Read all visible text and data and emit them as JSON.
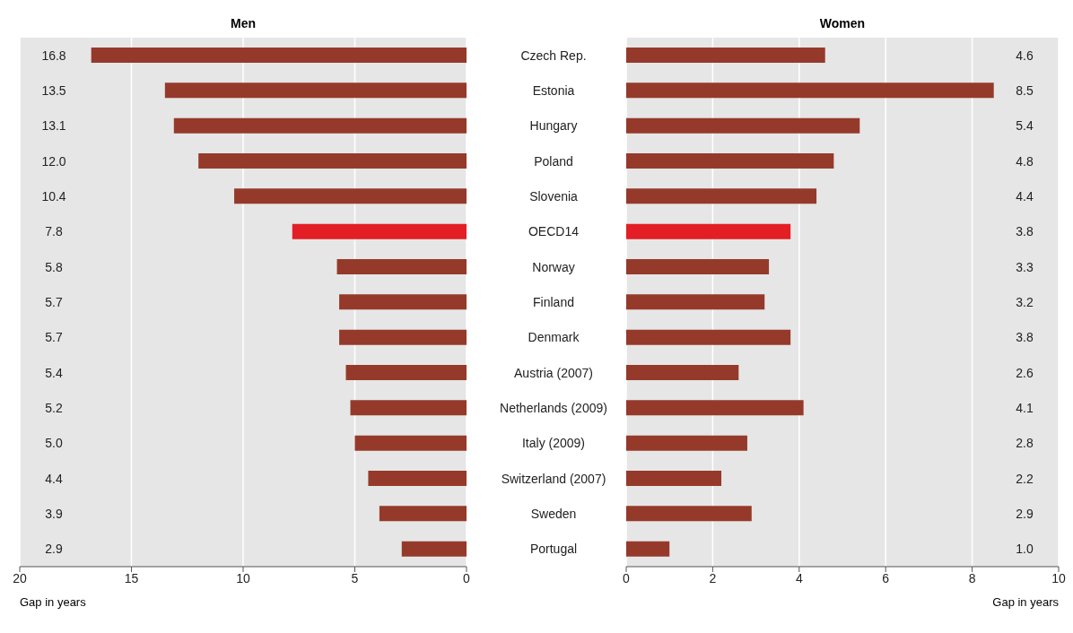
{
  "chart_data": [
    {
      "type": "bar",
      "orientation": "horizontal",
      "title": "Men",
      "xlabel": "Gap in years",
      "categories": [
        "Czech Rep.",
        "Estonia",
        "Hungary",
        "Poland",
        "Slovenia",
        "OECD14",
        "Norway",
        "Finland",
        "Denmark",
        "Austria (2007)",
        "Netherlands (2009)",
        "Italy (2009)",
        "Switzerland (2007)",
        "Sweden",
        "Portugal"
      ],
      "values": [
        16.8,
        13.5,
        13.1,
        12.0,
        10.4,
        7.8,
        5.8,
        5.7,
        5.7,
        5.4,
        5.2,
        5.0,
        4.4,
        3.9,
        2.9
      ],
      "value_labels": [
        "16.8",
        "13.5",
        "13.1",
        "12.0",
        "10.4",
        "7.8",
        "5.8",
        "5.7",
        "5.7",
        "5.4",
        "5.2",
        "5.0",
        "4.4",
        "3.9",
        "2.9"
      ],
      "colors": [
        "#953a2b",
        "#953a2b",
        "#953a2b",
        "#953a2b",
        "#953a2b",
        "#e31e24",
        "#953a2b",
        "#953a2b",
        "#953a2b",
        "#953a2b",
        "#953a2b",
        "#953a2b",
        "#953a2b",
        "#953a2b",
        "#953a2b"
      ],
      "xlim": [
        20,
        0
      ],
      "xticks": [
        20,
        15,
        10,
        5,
        0
      ],
      "grid": "x"
    },
    {
      "type": "bar",
      "orientation": "horizontal",
      "title": "Women",
      "xlabel": "Gap in years",
      "values": [
        4.6,
        8.5,
        5.4,
        4.8,
        4.4,
        3.8,
        3.3,
        3.2,
        3.8,
        2.6,
        4.1,
        2.8,
        2.2,
        2.9,
        1.0
      ],
      "value_labels": [
        "4.6",
        "8.5",
        "5.4",
        "4.8",
        "4.4",
        "3.8",
        "3.3",
        "3.2",
        "3.8",
        "2.6",
        "4.1",
        "2.8",
        "2.2",
        "2.9",
        "1.0"
      ],
      "colors": [
        "#953a2b",
        "#953a2b",
        "#953a2b",
        "#953a2b",
        "#953a2b",
        "#e31e24",
        "#953a2b",
        "#953a2b",
        "#953a2b",
        "#953a2b",
        "#953a2b",
        "#953a2b",
        "#953a2b",
        "#953a2b",
        "#953a2b"
      ],
      "xlim": [
        0,
        10
      ],
      "xticks": [
        0,
        2,
        4,
        6,
        8,
        10
      ],
      "grid": "x",
      "tick_labels": "x"
    }
  ]
}
